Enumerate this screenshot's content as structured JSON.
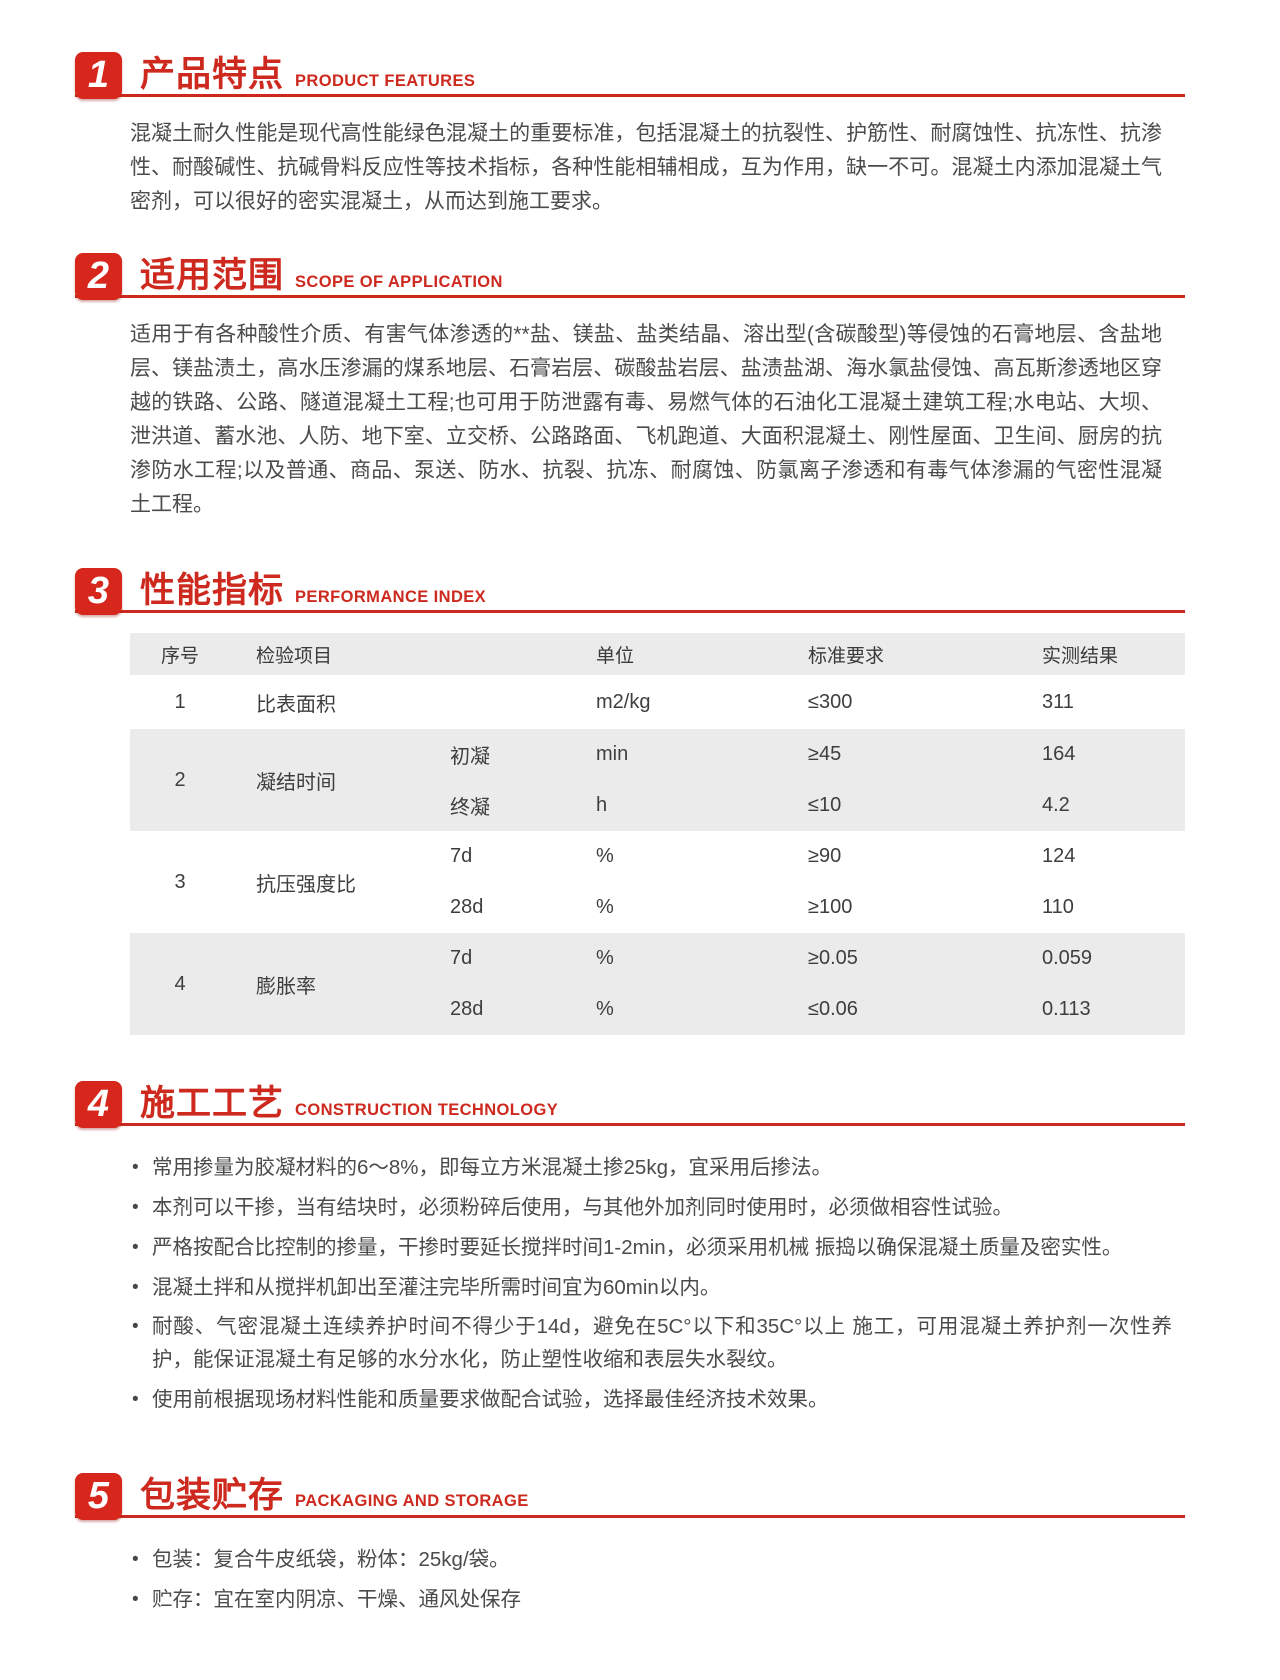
{
  "accent_color": "#cd291e",
  "band_gray_color": "#ebebeb",
  "sections": {
    "features": {
      "num": "1",
      "title": "产品特点",
      "subtitle": "PRODUCT FEATURES",
      "body": "混凝土耐久性能是现代高性能绿色混凝土的重要标准，包括混凝土的抗裂性、护筋性、耐腐蚀性、抗冻性、抗渗性、耐酸碱性、抗碱骨料反应性等技术指标，各种性能相辅相成，互为作用，缺一不可。混凝土内添加混凝土气密剂，可以很好的密实混凝土，从而达到施工要求。"
    },
    "scope": {
      "num": "2",
      "title": "适用范围",
      "subtitle": "SCOPE OF APPLICATION",
      "body": "适用于有各种酸性介质、有害气体渗透的**盐、镁盐、盐类结晶、溶出型(含碳酸型)等侵蚀的石膏地层、含盐地层、镁盐渍土，高水压渗漏的煤系地层、石膏岩层、碳酸盐岩层、盐渍盐湖、海水氯盐侵蚀、高瓦斯渗透地区穿越的铁路、公路、隧道混凝土工程;也可用于防泄露有毒、易燃气体的石油化工混凝土建筑工程;水电站、大坝、泄洪道、蓄水池、人防、地下室、立交桥、公路路面、飞机跑道、大面积混凝土、刚性屋面、卫生间、厨房的抗渗防水工程;以及普通、商品、泵送、防水、抗裂、抗冻、耐腐蚀、防氯离子渗透和有毒气体渗漏的气密性混凝土工程。"
    },
    "performance": {
      "num": "3",
      "title": "性能指标",
      "subtitle": "PERFORMANCE INDEX",
      "table": {
        "headers": {
          "no": "序号",
          "item": "检验项目",
          "unit": "单位",
          "standard": "标准要求",
          "result": "实测结果"
        },
        "rows": [
          {
            "no": "1",
            "item": "比表面积",
            "unit": "m2/kg",
            "standard": "≤300",
            "result": "311"
          },
          {
            "no": "2",
            "item": "凝结时间",
            "subs": [
              {
                "sub": "初凝",
                "unit": "min",
                "standard": "≥45",
                "result": "164"
              },
              {
                "sub": "终凝",
                "unit": "h",
                "standard": "≤10",
                "result": "4.2"
              }
            ]
          },
          {
            "no": "3",
            "item": "抗压强度比",
            "subs": [
              {
                "sub": "7d",
                "unit": "%",
                "standard": "≥90",
                "result": "124"
              },
              {
                "sub": "28d",
                "unit": "%",
                "standard": "≥100",
                "result": "110"
              }
            ]
          },
          {
            "no": "4",
            "item": "膨胀率",
            "subs": [
              {
                "sub": "7d",
                "unit": "%",
                "standard": "≥0.05",
                "result": "0.059"
              },
              {
                "sub": "28d",
                "unit": "%",
                "standard": "≤0.06",
                "result": "0.113"
              }
            ]
          }
        ]
      }
    },
    "construction": {
      "num": "4",
      "title": "施工工艺",
      "subtitle": "CONSTRUCTION TECHNOLOGY",
      "bullets": [
        "常用掺量为胶凝材料的6～8%，即每立方米混凝土掺25kg，宜采用后掺法。",
        "本剂可以干掺，当有结块时，必须粉碎后使用，与其他外加剂同时使用时，必须做相容性试验。",
        "严格按配合比控制的掺量，干掺时要延长搅拌时间1-2min，必须采用机械 振捣以确保混凝土质量及密实性。",
        "混凝土拌和从搅拌机卸出至灌注完毕所需时间宜为60min以内。",
        "耐酸、气密混凝土连续养护时间不得少于14d，避免在5C°以下和35C°以上 施工，可用混凝土养护剂一次性养护，能保证混凝土有足够的水分水化，防止塑性收缩和表层失水裂纹。",
        "使用前根据现场材料性能和质量要求做配合试验，选择最佳经济技术效果。"
      ]
    },
    "packaging": {
      "num": "5",
      "title": "包装贮存",
      "subtitle": "PACKAGING AND STORAGE",
      "bullets": [
        "包装：复合牛皮纸袋，粉体：25kg/袋。",
        "贮存：宜在室内阴凉、干燥、通风处保存"
      ]
    }
  }
}
